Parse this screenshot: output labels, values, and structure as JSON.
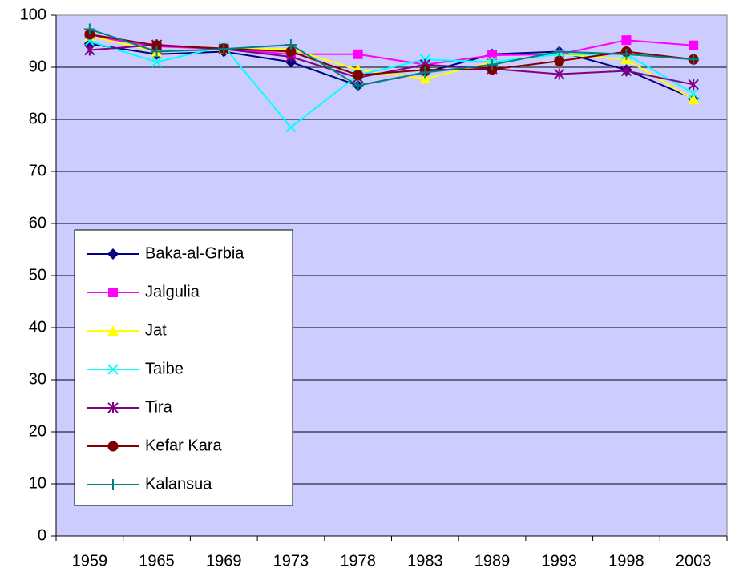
{
  "chart_data": {
    "type": "line",
    "categories": [
      "1959",
      "1965",
      "1969",
      "1973",
      "1978",
      "1983",
      "1989",
      "1993",
      "1998",
      "2003"
    ],
    "ylim": [
      0,
      100
    ],
    "yticks": [
      0,
      10,
      20,
      30,
      40,
      50,
      60,
      70,
      80,
      90,
      100
    ],
    "grid": true,
    "plot_background": "#ccccff",
    "legend": "lower-left",
    "series": [
      {
        "name": "Baka-al-Grbia",
        "color": "#000080",
        "marker": "diamond",
        "values": [
          94.5,
          92.5,
          93,
          91,
          86.5,
          89,
          92.5,
          93,
          89.5,
          84
        ]
      },
      {
        "name": "Jalgulia",
        "color": "#ff00ff",
        "marker": "square",
        "values": [
          96,
          94,
          93.5,
          92.5,
          92.5,
          90.5,
          92.3,
          92.5,
          95.2,
          94.2
        ]
      },
      {
        "name": "Jat",
        "color": "#ffff00",
        "marker": "triangle",
        "values": [
          96,
          93,
          93.5,
          93.5,
          89.5,
          87.8,
          91,
          92.5,
          91.5,
          83.8
        ]
      },
      {
        "name": "Taibe",
        "color": "#00ffff",
        "marker": "x",
        "values": [
          95,
          91,
          94,
          78.5,
          88.5,
          91.5,
          91,
          92.5,
          92.5,
          85
        ]
      },
      {
        "name": "Tira",
        "color": "#800080",
        "marker": "star",
        "values": [
          93.3,
          94.3,
          93.5,
          92,
          88,
          90.5,
          89.7,
          88.7,
          89.3,
          86.7
        ]
      },
      {
        "name": "Kefar Kara",
        "color": "#800000",
        "marker": "circle",
        "values": [
          96.3,
          94.2,
          93.6,
          93,
          88.5,
          89.5,
          89.6,
          91.2,
          93,
          91.5
        ]
      },
      {
        "name": "Kalansua",
        "color": "#008080",
        "marker": "plus",
        "values": [
          97.3,
          93,
          93.5,
          94.3,
          86.5,
          89,
          90.5,
          93,
          92.5,
          91.5
        ]
      }
    ]
  }
}
